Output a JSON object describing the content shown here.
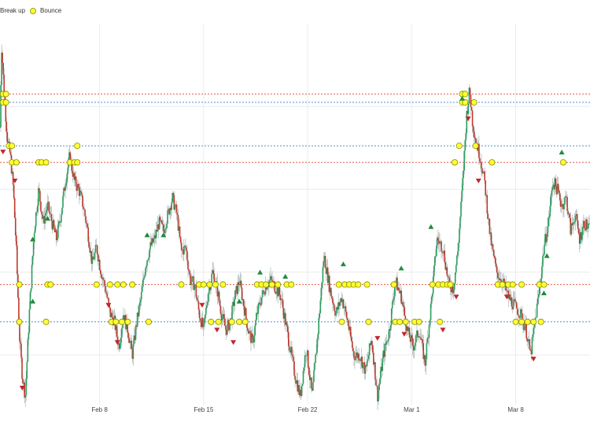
{
  "chart_data": {
    "type": "candlestick",
    "legend": [
      {
        "label": "Break up",
        "marker": "triangle-up",
        "color": "#2ca02c"
      },
      {
        "label": "Bounce",
        "marker": "circle",
        "color": "#ffff33"
      }
    ],
    "xaxis": {
      "ticks": [
        "Feb 8",
        "Feb 15",
        "Feb 22",
        "Mar 1",
        "Mar 8"
      ],
      "tick_days": [
        7,
        14,
        21,
        28,
        35
      ],
      "range_days": [
        0.3,
        40
      ]
    },
    "yaxis": {
      "range": [
        18,
        110
      ],
      "show_tick_labels": false
    },
    "grid": true,
    "colors": {
      "up": "#2a9d5c",
      "down": "#c0392b",
      "support": "#4a90d9",
      "resistance": "#e8594a",
      "bounce_fill": "#ffff33",
      "bounce_stroke": "#8a8a00",
      "breakup": "#1f8a3a",
      "breakdown": "#c0272d"
    },
    "levels": [
      {
        "value": 93.0,
        "kind": "resistance"
      },
      {
        "value": 91.0,
        "kind": "support"
      },
      {
        "value": 80.5,
        "kind": "support"
      },
      {
        "value": 76.5,
        "kind": "resistance"
      },
      {
        "value": 47.0,
        "kind": "resistance"
      },
      {
        "value": 38.0,
        "kind": "support"
      }
    ],
    "price_path": [
      [
        0.3,
        85
      ],
      [
        0.4,
        105
      ],
      [
        0.6,
        92
      ],
      [
        0.8,
        82
      ],
      [
        1.0,
        78
      ],
      [
        1.2,
        70
      ],
      [
        1.4,
        55
      ],
      [
        1.6,
        35
      ],
      [
        1.8,
        25
      ],
      [
        2.0,
        20
      ],
      [
        2.3,
        42
      ],
      [
        2.6,
        60
      ],
      [
        2.9,
        70
      ],
      [
        3.2,
        62
      ],
      [
        3.5,
        66
      ],
      [
        3.8,
        62
      ],
      [
        4.1,
        58
      ],
      [
        4.4,
        64
      ],
      [
        4.7,
        72
      ],
      [
        5.0,
        78
      ],
      [
        5.3,
        72
      ],
      [
        5.6,
        70
      ],
      [
        5.9,
        66
      ],
      [
        6.2,
        60
      ],
      [
        6.5,
        52
      ],
      [
        6.8,
        56
      ],
      [
        7.1,
        50
      ],
      [
        7.4,
        46
      ],
      [
        7.7,
        40
      ],
      [
        8.0,
        38
      ],
      [
        8.3,
        32
      ],
      [
        8.6,
        40
      ],
      [
        8.9,
        36
      ],
      [
        9.2,
        30
      ],
      [
        9.5,
        38
      ],
      [
        9.8,
        44
      ],
      [
        10.1,
        52
      ],
      [
        10.4,
        56
      ],
      [
        10.7,
        58
      ],
      [
        11.0,
        62
      ],
      [
        11.3,
        60
      ],
      [
        11.6,
        64
      ],
      [
        11.9,
        68
      ],
      [
        12.2,
        64
      ],
      [
        12.5,
        55
      ],
      [
        12.8,
        56
      ],
      [
        13.1,
        48
      ],
      [
        13.4,
        47
      ],
      [
        13.7,
        40
      ],
      [
        14.0,
        36
      ],
      [
        14.3,
        45
      ],
      [
        14.6,
        50
      ],
      [
        14.9,
        46
      ],
      [
        15.2,
        40
      ],
      [
        15.5,
        36
      ],
      [
        15.8,
        38
      ],
      [
        16.1,
        44
      ],
      [
        16.4,
        48
      ],
      [
        16.7,
        42
      ],
      [
        17.0,
        36
      ],
      [
        17.3,
        33
      ],
      [
        17.6,
        40
      ],
      [
        17.9,
        44
      ],
      [
        18.2,
        47
      ],
      [
        18.5,
        48
      ],
      [
        18.9,
        46
      ],
      [
        19.2,
        44
      ],
      [
        19.5,
        38
      ],
      [
        19.8,
        32
      ],
      [
        20.1,
        26
      ],
      [
        20.5,
        20
      ],
      [
        20.9,
        32
      ],
      [
        21.3,
        20
      ],
      [
        21.7,
        36
      ],
      [
        22.1,
        54
      ],
      [
        22.5,
        46
      ],
      [
        22.9,
        40
      ],
      [
        23.3,
        44
      ],
      [
        23.7,
        38
      ],
      [
        24.1,
        30
      ],
      [
        24.5,
        30
      ],
      [
        24.9,
        26
      ],
      [
        25.3,
        34
      ],
      [
        25.7,
        20
      ],
      [
        26.1,
        30
      ],
      [
        26.5,
        36
      ],
      [
        26.9,
        48
      ],
      [
        27.3,
        44
      ],
      [
        27.7,
        36
      ],
      [
        28.1,
        32
      ],
      [
        28.5,
        36
      ],
      [
        28.9,
        28
      ],
      [
        29.3,
        42
      ],
      [
        29.7,
        58
      ],
      [
        30.1,
        56
      ],
      [
        30.5,
        47
      ],
      [
        30.8,
        46
      ],
      [
        31.1,
        55
      ],
      [
        31.4,
        70
      ],
      [
        31.7,
        88
      ],
      [
        31.9,
        94
      ],
      [
        32.1,
        86
      ],
      [
        32.3,
        82
      ],
      [
        32.6,
        78
      ],
      [
        32.9,
        72
      ],
      [
        33.3,
        58
      ],
      [
        33.7,
        50
      ],
      [
        34.1,
        48
      ],
      [
        34.5,
        44
      ],
      [
        34.9,
        42
      ],
      [
        35.3,
        40
      ],
      [
        35.7,
        36
      ],
      [
        36.0,
        30
      ],
      [
        36.3,
        38
      ],
      [
        36.6,
        46
      ],
      [
        36.9,
        56
      ],
      [
        37.2,
        62
      ],
      [
        37.5,
        72
      ],
      [
        37.8,
        70
      ],
      [
        38.1,
        66
      ],
      [
        38.4,
        68
      ],
      [
        38.7,
        60
      ],
      [
        39.0,
        64
      ],
      [
        39.3,
        58
      ],
      [
        39.6,
        62
      ],
      [
        40.0,
        60
      ]
    ],
    "bounces": [
      {
        "x": 0.5,
        "y": 93
      },
      {
        "x": 0.7,
        "y": 93
      },
      {
        "x": 0.5,
        "y": 91
      },
      {
        "x": 0.7,
        "y": 91
      },
      {
        "x": 0.9,
        "y": 80.5
      },
      {
        "x": 1.1,
        "y": 80.5
      },
      {
        "x": 1.1,
        "y": 76.5
      },
      {
        "x": 1.4,
        "y": 76.5
      },
      {
        "x": 2.9,
        "y": 76.5
      },
      {
        "x": 3.1,
        "y": 76.5
      },
      {
        "x": 3.4,
        "y": 76.5
      },
      {
        "x": 5.0,
        "y": 76.5
      },
      {
        "x": 5.3,
        "y": 76.5
      },
      {
        "x": 5.5,
        "y": 76.5
      },
      {
        "x": 5.5,
        "y": 80.5
      },
      {
        "x": 1.6,
        "y": 47
      },
      {
        "x": 3.5,
        "y": 47
      },
      {
        "x": 3.7,
        "y": 47
      },
      {
        "x": 1.6,
        "y": 38
      },
      {
        "x": 3.4,
        "y": 38
      },
      {
        "x": 6.8,
        "y": 47
      },
      {
        "x": 7.7,
        "y": 47
      },
      {
        "x": 8.2,
        "y": 47
      },
      {
        "x": 8.6,
        "y": 47
      },
      {
        "x": 9.2,
        "y": 47
      },
      {
        "x": 7.8,
        "y": 38
      },
      {
        "x": 8.1,
        "y": 38
      },
      {
        "x": 8.5,
        "y": 38
      },
      {
        "x": 8.9,
        "y": 38
      },
      {
        "x": 10.3,
        "y": 38
      },
      {
        "x": 12.5,
        "y": 47
      },
      {
        "x": 13.7,
        "y": 47
      },
      {
        "x": 14.0,
        "y": 47
      },
      {
        "x": 14.4,
        "y": 47
      },
      {
        "x": 14.8,
        "y": 47
      },
      {
        "x": 15.3,
        "y": 47
      },
      {
        "x": 14.5,
        "y": 38
      },
      {
        "x": 15.0,
        "y": 38
      },
      {
        "x": 15.9,
        "y": 38
      },
      {
        "x": 16.4,
        "y": 38
      },
      {
        "x": 16.8,
        "y": 38
      },
      {
        "x": 17.6,
        "y": 47
      },
      {
        "x": 17.9,
        "y": 47
      },
      {
        "x": 18.2,
        "y": 47
      },
      {
        "x": 18.6,
        "y": 47
      },
      {
        "x": 19.0,
        "y": 47
      },
      {
        "x": 19.6,
        "y": 47
      },
      {
        "x": 19.9,
        "y": 47
      },
      {
        "x": 23.1,
        "y": 47
      },
      {
        "x": 23.5,
        "y": 47
      },
      {
        "x": 23.8,
        "y": 47
      },
      {
        "x": 24.1,
        "y": 47
      },
      {
        "x": 24.4,
        "y": 47
      },
      {
        "x": 25.0,
        "y": 47
      },
      {
        "x": 23.3,
        "y": 38
      },
      {
        "x": 25.1,
        "y": 38
      },
      {
        "x": 26.9,
        "y": 38
      },
      {
        "x": 27.2,
        "y": 38
      },
      {
        "x": 27.6,
        "y": 38
      },
      {
        "x": 28.2,
        "y": 38
      },
      {
        "x": 28.5,
        "y": 38
      },
      {
        "x": 26.8,
        "y": 47
      },
      {
        "x": 29.4,
        "y": 47
      },
      {
        "x": 29.8,
        "y": 47
      },
      {
        "x": 30.1,
        "y": 47
      },
      {
        "x": 30.4,
        "y": 47
      },
      {
        "x": 30.6,
        "y": 47
      },
      {
        "x": 29.9,
        "y": 38
      },
      {
        "x": 30.9,
        "y": 76.5
      },
      {
        "x": 31.2,
        "y": 80.5
      },
      {
        "x": 31.4,
        "y": 93
      },
      {
        "x": 31.6,
        "y": 93
      },
      {
        "x": 31.4,
        "y": 91
      },
      {
        "x": 31.6,
        "y": 91
      },
      {
        "x": 32.2,
        "y": 91
      },
      {
        "x": 32.3,
        "y": 80.5
      },
      {
        "x": 33.4,
        "y": 76.5
      },
      {
        "x": 33.8,
        "y": 47
      },
      {
        "x": 34.1,
        "y": 47
      },
      {
        "x": 34.5,
        "y": 47
      },
      {
        "x": 34.8,
        "y": 47
      },
      {
        "x": 35.4,
        "y": 47
      },
      {
        "x": 35.0,
        "y": 38
      },
      {
        "x": 35.4,
        "y": 38
      },
      {
        "x": 35.8,
        "y": 38
      },
      {
        "x": 36.2,
        "y": 38
      },
      {
        "x": 36.7,
        "y": 38
      },
      {
        "x": 36.6,
        "y": 47
      },
      {
        "x": 36.9,
        "y": 47
      },
      {
        "x": 38.2,
        "y": 76.5
      }
    ],
    "breakups": [
      {
        "x": 3.5,
        "y": 63
      },
      {
        "x": 2.5,
        "y": 58
      },
      {
        "x": 2.5,
        "y": 43
      },
      {
        "x": 10.2,
        "y": 59
      },
      {
        "x": 11.3,
        "y": 59
      },
      {
        "x": 16.4,
        "y": 43
      },
      {
        "x": 17.8,
        "y": 50
      },
      {
        "x": 19.5,
        "y": 49
      },
      {
        "x": 23.4,
        "y": 52
      },
      {
        "x": 27.3,
        "y": 51
      },
      {
        "x": 29.3,
        "y": 61
      },
      {
        "x": 31.4,
        "y": 92
      },
      {
        "x": 37.1,
        "y": 54
      },
      {
        "x": 36.9,
        "y": 45
      },
      {
        "x": 38.1,
        "y": 79
      }
    ],
    "breakdowns": [
      {
        "x": 0.5,
        "y": 79
      },
      {
        "x": 1.3,
        "y": 72
      },
      {
        "x": 1.8,
        "y": 22
      },
      {
        "x": 7.6,
        "y": 42
      },
      {
        "x": 8.2,
        "y": 33
      },
      {
        "x": 13.9,
        "y": 42
      },
      {
        "x": 14.9,
        "y": 36
      },
      {
        "x": 16.0,
        "y": 33
      },
      {
        "x": 25.7,
        "y": 34
      },
      {
        "x": 27.5,
        "y": 35
      },
      {
        "x": 30.1,
        "y": 36
      },
      {
        "x": 31.0,
        "y": 44
      },
      {
        "x": 31.8,
        "y": 87
      },
      {
        "x": 32.5,
        "y": 72
      },
      {
        "x": 34.4,
        "y": 44
      },
      {
        "x": 36.2,
        "y": 29
      }
    ]
  }
}
